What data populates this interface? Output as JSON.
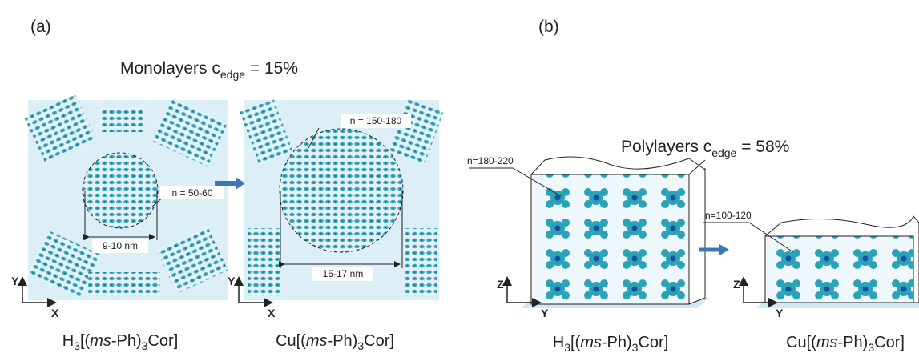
{
  "panel_a": {
    "label": "(a)",
    "title": {
      "main": "Monolayers c",
      "sub": "edge",
      "rest": " = 15%"
    },
    "left": {
      "n_label": "n = 50-60",
      "size_label": "9-10 nm",
      "axis_y": "Y",
      "axis_x": "X",
      "compound": [
        "H",
        "3",
        "[(",
        "ms",
        "-Ph)",
        "3",
        "Cor]"
      ]
    },
    "right": {
      "n_label": "n = 150-180",
      "size_label": "15-17 nm",
      "axis_y": "Y",
      "axis_x": "X",
      "compound": [
        "Cu[(",
        "ms",
        "-Ph)",
        "3",
        "Cor]"
      ]
    }
  },
  "panel_b": {
    "label": "(b)",
    "title": {
      "main": "Polylayers c",
      "sub": "edge",
      "rest": " = 58%"
    },
    "left": {
      "n_label": "n=180-220",
      "axis_z": "Z",
      "axis_y": "Y",
      "compound": [
        "H",
        "3",
        "[(",
        "ms",
        "-Ph)",
        "3",
        "Cor]"
      ]
    },
    "right": {
      "n_label": "n=100-120",
      "axis_z": "Z",
      "axis_y": "Y",
      "compound": [
        "Cu[(",
        "ms",
        "-Ph)",
        "3",
        "Cor]"
      ]
    }
  }
}
